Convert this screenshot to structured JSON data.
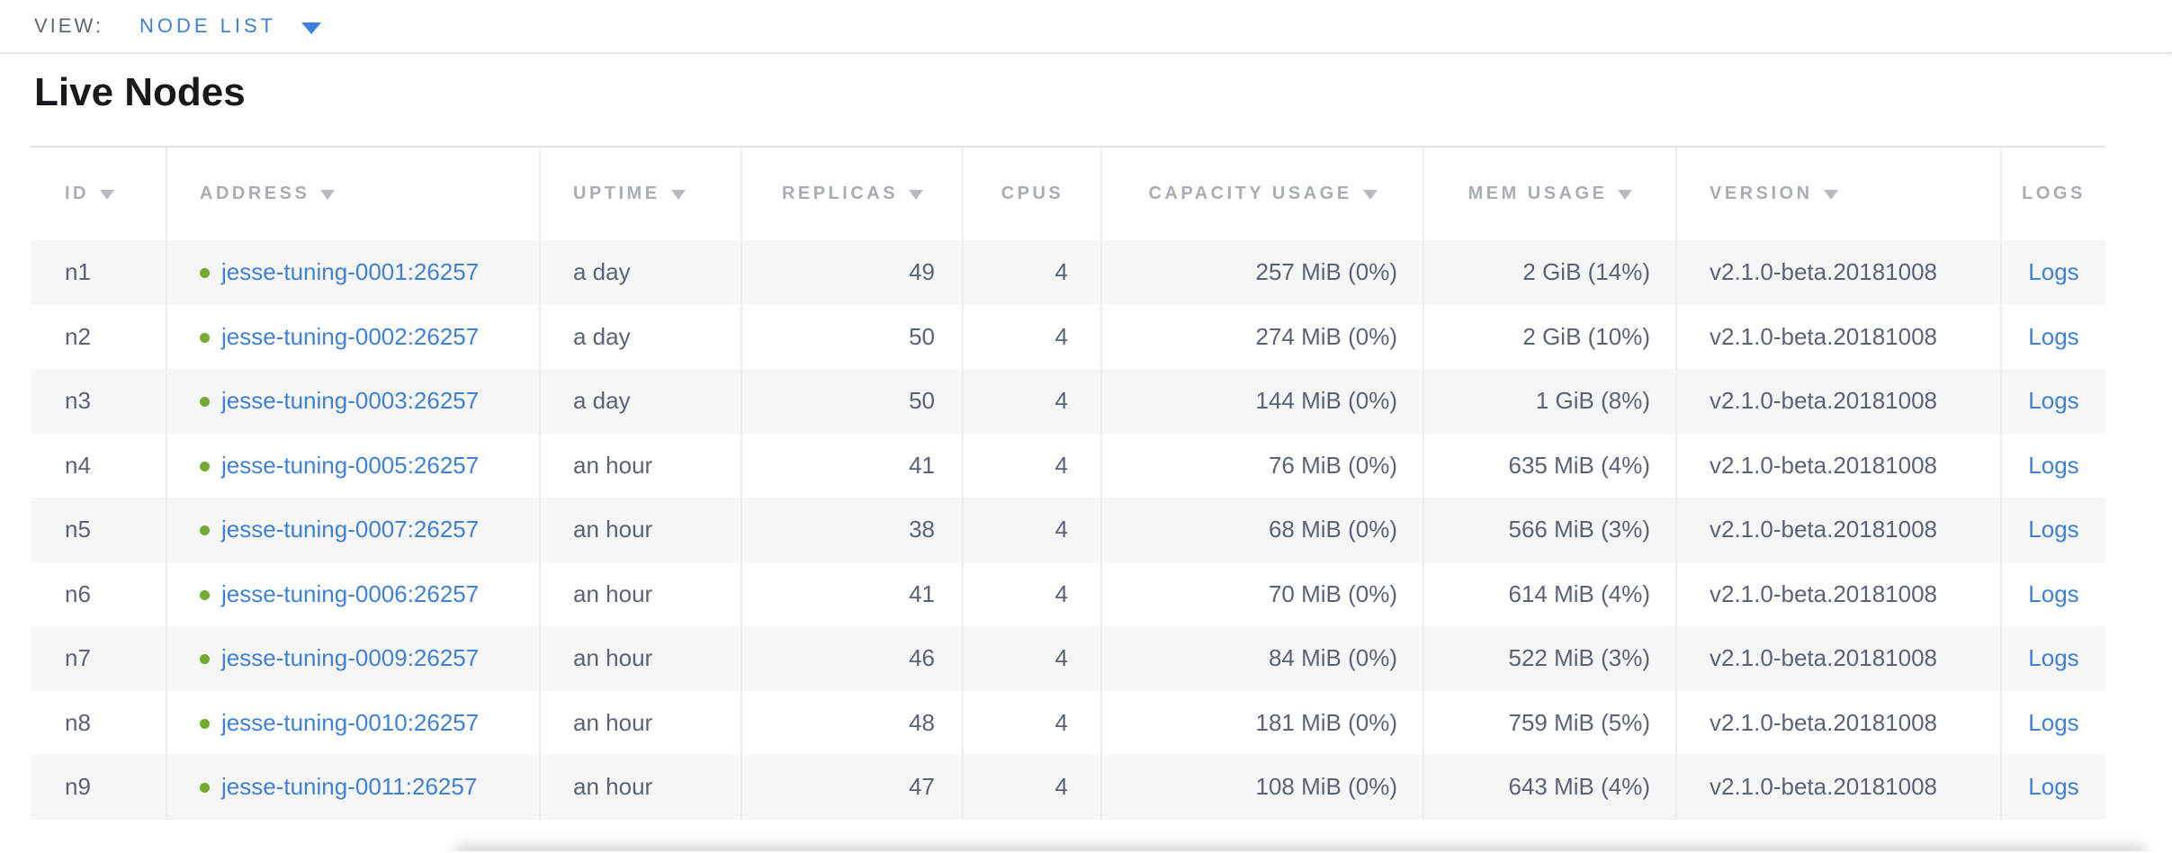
{
  "view_bar": {
    "label": "VIEW:",
    "selected_view": "NODE LIST"
  },
  "page": {
    "title": "Live Nodes"
  },
  "table": {
    "columns": [
      {
        "key": "id",
        "label": "ID",
        "sortable": true,
        "align": "left"
      },
      {
        "key": "address",
        "label": "ADDRESS",
        "sortable": true,
        "align": "left"
      },
      {
        "key": "uptime",
        "label": "UPTIME",
        "sortable": true,
        "align": "left"
      },
      {
        "key": "replicas",
        "label": "REPLICAS",
        "sortable": true,
        "align": "right"
      },
      {
        "key": "cpus",
        "label": "CPUS",
        "sortable": false,
        "align": "right"
      },
      {
        "key": "capacity",
        "label": "CAPACITY USAGE",
        "sortable": true,
        "align": "right"
      },
      {
        "key": "mem",
        "label": "MEM USAGE",
        "sortable": true,
        "align": "right"
      },
      {
        "key": "version",
        "label": "VERSION",
        "sortable": true,
        "align": "left"
      },
      {
        "key": "logs",
        "label": "LOGS",
        "sortable": false,
        "align": "center"
      }
    ],
    "rows": [
      {
        "id": "n1",
        "address": "jesse-tuning-0001:26257",
        "status": "live",
        "uptime": "a day",
        "replicas": "49",
        "cpus": "4",
        "capacity": "257 MiB (0%)",
        "mem": "2 GiB (14%)",
        "version": "v2.1.0-beta.20181008",
        "logs": "Logs"
      },
      {
        "id": "n2",
        "address": "jesse-tuning-0002:26257",
        "status": "live",
        "uptime": "a day",
        "replicas": "50",
        "cpus": "4",
        "capacity": "274 MiB (0%)",
        "mem": "2 GiB (10%)",
        "version": "v2.1.0-beta.20181008",
        "logs": "Logs"
      },
      {
        "id": "n3",
        "address": "jesse-tuning-0003:26257",
        "status": "live",
        "uptime": "a day",
        "replicas": "50",
        "cpus": "4",
        "capacity": "144 MiB (0%)",
        "mem": "1 GiB (8%)",
        "version": "v2.1.0-beta.20181008",
        "logs": "Logs"
      },
      {
        "id": "n4",
        "address": "jesse-tuning-0005:26257",
        "status": "live",
        "uptime": "an hour",
        "replicas": "41",
        "cpus": "4",
        "capacity": "76 MiB (0%)",
        "mem": "635 MiB (4%)",
        "version": "v2.1.0-beta.20181008",
        "logs": "Logs"
      },
      {
        "id": "n5",
        "address": "jesse-tuning-0007:26257",
        "status": "live",
        "uptime": "an hour",
        "replicas": "38",
        "cpus": "4",
        "capacity": "68 MiB (0%)",
        "mem": "566 MiB (3%)",
        "version": "v2.1.0-beta.20181008",
        "logs": "Logs"
      },
      {
        "id": "n6",
        "address": "jesse-tuning-0006:26257",
        "status": "live",
        "uptime": "an hour",
        "replicas": "41",
        "cpus": "4",
        "capacity": "70 MiB (0%)",
        "mem": "614 MiB (4%)",
        "version": "v2.1.0-beta.20181008",
        "logs": "Logs"
      },
      {
        "id": "n7",
        "address": "jesse-tuning-0009:26257",
        "status": "live",
        "uptime": "an hour",
        "replicas": "46",
        "cpus": "4",
        "capacity": "84 MiB (0%)",
        "mem": "522 MiB (3%)",
        "version": "v2.1.0-beta.20181008",
        "logs": "Logs"
      },
      {
        "id": "n8",
        "address": "jesse-tuning-0010:26257",
        "status": "live",
        "uptime": "an hour",
        "replicas": "48",
        "cpus": "4",
        "capacity": "181 MiB (0%)",
        "mem": "759 MiB (5%)",
        "version": "v2.1.0-beta.20181008",
        "logs": "Logs"
      },
      {
        "id": "n9",
        "address": "jesse-tuning-0011:26257",
        "status": "live",
        "uptime": "an hour",
        "replicas": "47",
        "cpus": "4",
        "capacity": "108 MiB (0%)",
        "mem": "643 MiB (4%)",
        "version": "v2.1.0-beta.20181008",
        "logs": "Logs"
      }
    ]
  },
  "icons": {
    "sort_desc": "triangle-down",
    "view_caret": "triangle-down",
    "live_status": "green-dot"
  },
  "colors": {
    "link": "#3f80d8",
    "live_dot": "#73ab33"
  }
}
